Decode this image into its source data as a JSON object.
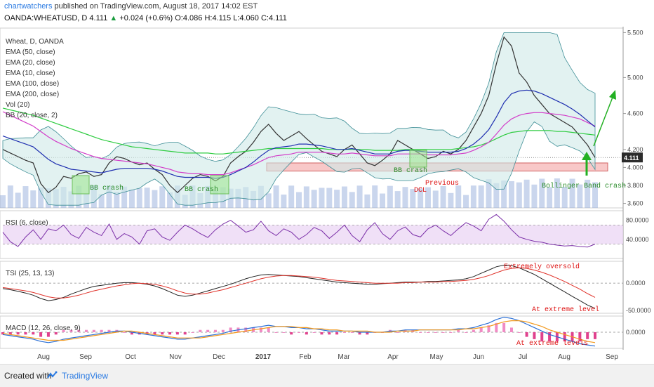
{
  "header": {
    "author": "chartwatchers",
    "published": "published on TradingView.com, August 18, 2017 14:02 EST",
    "symbol": "OANDA:WHEATUSD, D",
    "last": "4.111",
    "change": "+0.024 (+0.6%)",
    "ohlc": "O:4.086 H:4.115 L:4.060 C:4.111"
  },
  "legend": [
    "Wheat, D, OANDA",
    "EMA (50, close)",
    "EMA (20, close)",
    "EMA (10, close)",
    "EMA (100, close)",
    "EMA (200, close)",
    "Vol (20)",
    "BB (20, close, 2)"
  ],
  "annotations": {
    "bb1": "BB crash",
    "bb2": "BB crash",
    "bb3": "BB crash",
    "dcl": "Previous\nDCL",
    "bbcrash": "Bollinger Band crash",
    "oversold": "Extremely oversold",
    "tsi_extreme": "At extreme level",
    "macd_extreme": "At extreme levels"
  },
  "panels": {
    "rsi": "RSI (6, close)",
    "tsi": "TSI (25, 13, 13)",
    "macd": "MACD (12, 26, close, 9)"
  },
  "footer": {
    "created": "Created with",
    "brand": "TradingView"
  },
  "chart_data": [
    {
      "type": "line",
      "title": "Wheat, D, OANDA",
      "x_ticks": [
        "Aug",
        "Sep",
        "Oct",
        "Nov",
        "Dec",
        "2017",
        "Feb",
        "Mar",
        "Apr",
        "May",
        "Jun",
        "Jul",
        "Aug",
        "Sep"
      ],
      "y_ticks": [
        "5.500",
        "5.000",
        "4.600",
        "4.200",
        "4.000",
        "3.800",
        "3.600"
      ],
      "ylim": [
        3.55,
        5.55
      ],
      "last_price": "4.111",
      "series": [
        {
          "name": "Wheat close",
          "color": "#333333",
          "values": [
            4.2,
            4.16,
            4.12,
            4.08,
            4.05,
            3.82,
            3.72,
            3.78,
            3.9,
            3.88,
            3.93,
            3.95,
            3.9,
            3.92,
            4.05,
            4.12,
            4.1,
            4.06,
            4.03,
            4.05,
            3.98,
            3.92,
            3.8,
            3.72,
            3.8,
            3.88,
            3.92,
            3.9,
            3.85,
            3.9,
            4.05,
            4.12,
            4.18,
            4.28,
            4.4,
            4.48,
            4.38,
            4.3,
            4.35,
            4.4,
            4.32,
            4.25,
            4.18,
            4.15,
            4.12,
            4.2,
            4.25,
            4.15,
            4.05,
            4.02,
            4.08,
            4.15,
            4.3,
            4.25,
            4.2,
            4.15,
            4.1,
            4.12,
            4.18,
            4.15,
            4.2,
            4.3,
            4.45,
            4.6,
            4.8,
            5.15,
            5.45,
            5.35,
            5.05,
            4.95,
            4.8,
            4.7,
            4.6,
            4.55,
            4.5,
            4.45,
            4.35,
            4.25,
            4.11
          ]
        },
        {
          "name": "EMA 200",
          "color": "#2ecc40",
          "values": [
            4.66,
            4.64,
            4.62,
            4.6,
            4.58,
            4.55,
            4.52,
            4.49,
            4.46,
            4.43,
            4.4,
            4.37,
            4.34,
            4.31,
            4.29,
            4.27,
            4.25,
            4.23,
            4.22,
            4.21,
            4.2,
            4.19,
            4.18,
            4.17,
            4.16,
            4.16,
            4.16,
            4.16,
            4.15,
            4.15,
            4.16,
            4.17,
            4.18,
            4.19,
            4.2,
            4.21,
            4.21,
            4.21,
            4.21,
            4.21,
            4.21,
            4.21,
            4.21,
            4.2,
            4.2,
            4.2,
            4.2,
            4.2,
            4.2,
            4.19,
            4.19,
            4.19,
            4.19,
            4.2,
            4.2,
            4.2,
            4.2,
            4.2,
            4.2,
            4.2,
            4.21,
            4.22,
            4.23,
            4.25,
            4.28,
            4.32,
            4.36,
            4.39,
            4.4,
            4.41,
            4.41,
            4.41,
            4.41,
            4.4,
            4.4,
            4.39,
            4.38,
            4.37,
            4.36
          ]
        },
        {
          "name": "EMA 100",
          "color": "#d23ec9",
          "values": [
            4.62,
            4.58,
            4.54,
            4.5,
            4.46,
            4.4,
            4.34,
            4.29,
            4.25,
            4.21,
            4.18,
            4.15,
            4.12,
            4.1,
            4.09,
            4.08,
            4.07,
            4.06,
            4.05,
            4.04,
            4.02,
            4.0,
            3.98,
            3.95,
            3.94,
            3.93,
            3.93,
            3.92,
            3.92,
            3.92,
            3.94,
            3.97,
            4.0,
            4.03,
            4.07,
            4.11,
            4.13,
            4.14,
            4.15,
            4.17,
            4.17,
            4.17,
            4.17,
            4.16,
            4.15,
            4.15,
            4.16,
            4.15,
            4.14,
            4.13,
            4.13,
            4.13,
            4.15,
            4.15,
            4.15,
            4.15,
            4.14,
            4.14,
            4.14,
            4.14,
            4.15,
            4.16,
            4.19,
            4.23,
            4.28,
            4.37,
            4.47,
            4.54,
            4.58,
            4.6,
            4.61,
            4.61,
            4.6,
            4.59,
            4.58,
            4.56,
            4.54,
            4.5,
            4.46
          ]
        },
        {
          "name": "EMA 50",
          "color": "#1f2fb0",
          "values": [
            4.35,
            4.32,
            4.29,
            4.26,
            4.23,
            4.16,
            4.09,
            4.04,
            4.01,
            3.98,
            3.97,
            3.96,
            3.95,
            3.94,
            3.96,
            3.98,
            3.99,
            3.99,
            3.99,
            3.99,
            3.98,
            3.96,
            3.93,
            3.9,
            3.89,
            3.89,
            3.89,
            3.89,
            3.88,
            3.89,
            3.92,
            3.96,
            4.0,
            4.06,
            4.13,
            4.19,
            4.22,
            4.23,
            4.24,
            4.26,
            4.26,
            4.25,
            4.24,
            4.22,
            4.2,
            4.2,
            4.21,
            4.19,
            4.17,
            4.15,
            4.15,
            4.15,
            4.18,
            4.19,
            4.19,
            4.18,
            4.17,
            4.17,
            4.17,
            4.17,
            4.18,
            4.21,
            4.26,
            4.33,
            4.42,
            4.56,
            4.72,
            4.82,
            4.85,
            4.86,
            4.85,
            4.82,
            4.78,
            4.74,
            4.7,
            4.65,
            4.59,
            4.52,
            4.45
          ]
        }
      ]
    },
    {
      "type": "line",
      "title": "RSI (6, close)",
      "y_ticks": [
        "80.0000",
        "40.0000"
      ],
      "ylim": [
        0,
        100
      ],
      "series": [
        {
          "name": "RSI",
          "color": "#7b2fa8",
          "values": [
            55,
            35,
            25,
            45,
            60,
            40,
            62,
            58,
            70,
            50,
            42,
            65,
            55,
            48,
            72,
            40,
            52,
            45,
            30,
            58,
            62,
            45,
            38,
            55,
            70,
            62,
            52,
            44,
            60,
            72,
            80,
            68,
            55,
            60,
            78,
            58,
            48,
            62,
            55,
            40,
            50,
            65,
            58,
            42,
            55,
            70,
            48,
            35,
            60,
            75,
            52,
            40,
            58,
            66,
            50,
            45,
            62,
            70,
            58,
            48,
            62,
            75,
            68,
            58,
            82,
            92,
            78,
            60,
            45,
            40,
            36,
            34,
            30,
            28,
            26,
            27,
            25,
            24,
            30
          ]
        }
      ]
    },
    {
      "type": "line",
      "title": "TSI (25, 13, 13)",
      "y_ticks": [
        "0.0000",
        "-50.0000"
      ],
      "ylim": [
        -55,
        40
      ],
      "series": [
        {
          "name": "TSI",
          "color": "#222222",
          "values": [
            -10,
            -12,
            -15,
            -18,
            -22,
            -28,
            -32,
            -30,
            -26,
            -20,
            -15,
            -10,
            -6,
            -4,
            -2,
            0,
            1,
            1,
            0,
            -2,
            -5,
            -10,
            -16,
            -22,
            -24,
            -22,
            -18,
            -14,
            -10,
            -6,
            -2,
            3,
            8,
            12,
            15,
            16,
            15,
            14,
            13,
            12,
            10,
            8,
            6,
            4,
            2,
            1,
            0,
            -1,
            -2,
            -2,
            -1,
            0,
            1,
            2,
            2,
            2,
            3,
            3,
            4,
            5,
            6,
            8,
            12,
            18,
            24,
            30,
            33,
            32,
            28,
            22,
            16,
            8,
            0,
            -8,
            -16,
            -24,
            -32,
            -40,
            -46
          ]
        },
        {
          "name": "TSI signal",
          "color": "#e0322a",
          "values": [
            -8,
            -10,
            -12,
            -14,
            -17,
            -21,
            -25,
            -27,
            -27,
            -25,
            -22,
            -18,
            -14,
            -11,
            -8,
            -5,
            -3,
            -1,
            0,
            -1,
            -2,
            -5,
            -9,
            -14,
            -18,
            -20,
            -20,
            -18,
            -15,
            -12,
            -8,
            -4,
            0,
            4,
            8,
            11,
            13,
            14,
            14,
            13,
            12,
            11,
            9,
            7,
            5,
            4,
            3,
            2,
            1,
            0,
            0,
            0,
            0,
            1,
            1,
            2,
            2,
            2,
            3,
            3,
            4,
            5,
            7,
            10,
            14,
            19,
            24,
            27,
            28,
            27,
            24,
            20,
            15,
            9,
            3,
            -4,
            -11,
            -19,
            -26
          ]
        }
      ]
    },
    {
      "type": "line",
      "title": "MACD (12, 26, close, 9)",
      "y_ticks": [
        "0.0000"
      ],
      "ylim": [
        -0.14,
        0.14
      ],
      "series": [
        {
          "name": "MACD",
          "color": "#2a6fd6",
          "values": [
            -0.02,
            -0.03,
            -0.04,
            -0.05,
            -0.06,
            -0.08,
            -0.09,
            -0.08,
            -0.06,
            -0.05,
            -0.04,
            -0.03,
            -0.02,
            -0.01,
            0.0,
            0.01,
            0.01,
            0.0,
            -0.01,
            -0.02,
            -0.03,
            -0.04,
            -0.05,
            -0.06,
            -0.06,
            -0.05,
            -0.04,
            -0.03,
            -0.02,
            -0.01,
            0.01,
            0.02,
            0.03,
            0.04,
            0.05,
            0.06,
            0.05,
            0.05,
            0.04,
            0.04,
            0.03,
            0.03,
            0.02,
            0.01,
            0.01,
            0.01,
            0.01,
            0.0,
            0.0,
            0.0,
            0.0,
            0.01,
            0.01,
            0.02,
            0.02,
            0.02,
            0.02,
            0.02,
            0.02,
            0.02,
            0.03,
            0.03,
            0.04,
            0.06,
            0.08,
            0.11,
            0.13,
            0.12,
            0.1,
            0.07,
            0.04,
            0.01,
            -0.02,
            -0.04,
            -0.06,
            -0.08,
            -0.1,
            -0.11,
            -0.12
          ]
        },
        {
          "name": "Signal",
          "color": "#f39a1e",
          "values": [
            -0.01,
            -0.02,
            -0.03,
            -0.04,
            -0.05,
            -0.06,
            -0.07,
            -0.07,
            -0.07,
            -0.06,
            -0.05,
            -0.04,
            -0.03,
            -0.02,
            -0.01,
            0.0,
            0.01,
            0.01,
            0.0,
            -0.01,
            -0.02,
            -0.03,
            -0.04,
            -0.05,
            -0.05,
            -0.05,
            -0.05,
            -0.04,
            -0.03,
            -0.02,
            -0.01,
            0.0,
            0.01,
            0.02,
            0.03,
            0.04,
            0.05,
            0.05,
            0.05,
            0.04,
            0.04,
            0.03,
            0.03,
            0.02,
            0.02,
            0.01,
            0.01,
            0.01,
            0.01,
            0.0,
            0.0,
            0.0,
            0.01,
            0.01,
            0.01,
            0.02,
            0.02,
            0.02,
            0.02,
            0.02,
            0.02,
            0.03,
            0.03,
            0.04,
            0.05,
            0.07,
            0.09,
            0.1,
            0.1,
            0.09,
            0.07,
            0.05,
            0.02,
            0.0,
            -0.02,
            -0.04,
            -0.06,
            -0.08,
            -0.09
          ]
        }
      ]
    }
  ]
}
